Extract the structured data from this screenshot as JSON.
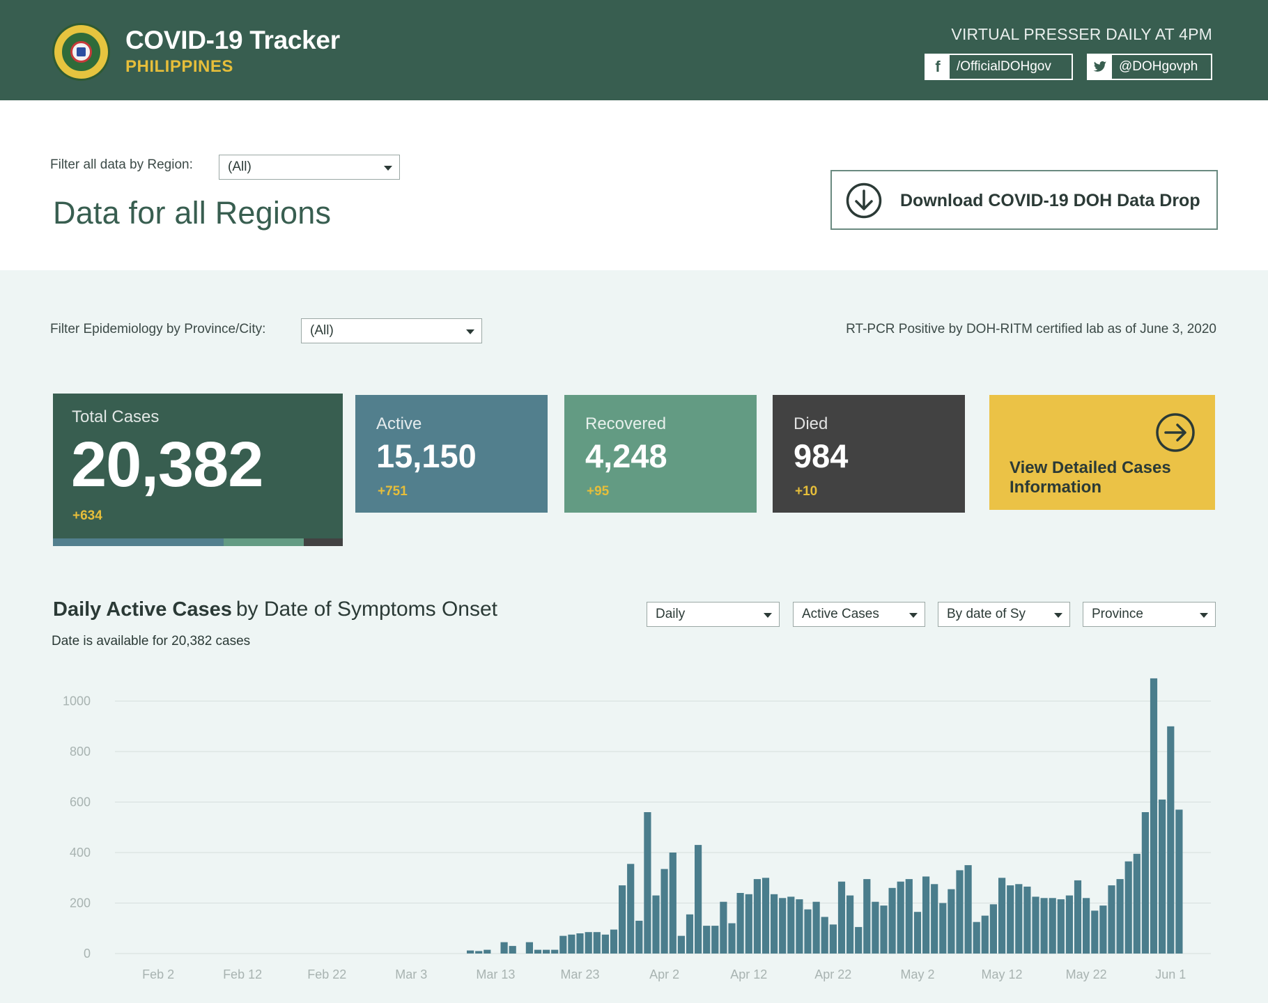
{
  "header": {
    "title": "COVID-19 Tracker",
    "subtitle": "PHILIPPINES",
    "presser": "VIRTUAL PRESSER DAILY AT 4PM",
    "facebook": "/OfficialDOHgov",
    "twitter": "@DOHgovph"
  },
  "region_filter": {
    "label": "Filter all data by Region:",
    "value": "(All)"
  },
  "region_title": "Data for all Regions",
  "download_label": "Download COVID-19 DOH Data Drop",
  "province_filter": {
    "label": "Filter Epidemiology by Province/City:",
    "value": "(All)"
  },
  "source_note": "RT-PCR Positive by DOH-RITM certified lab as of June 3, 2020",
  "cards": {
    "total": {
      "label": "Total Cases",
      "value": "20,382",
      "delta": "+634"
    },
    "active": {
      "label": "Active",
      "value": "15,150",
      "delta": "+751"
    },
    "recovered": {
      "label": "Recovered",
      "value": "4,248",
      "delta": "+95"
    },
    "died": {
      "label": "Died",
      "value": "984",
      "delta": "+10"
    },
    "detail": {
      "label": "View Detailed Cases Information"
    }
  },
  "colors": {
    "header": "#385e50",
    "active": "#527f8d",
    "recovered": "#639b83",
    "died": "#424242",
    "accent": "#ebc246",
    "bar": "#4a7d8c"
  },
  "chart_controls": [
    "Daily",
    "Active Cases",
    "By date of Sy",
    "Province"
  ],
  "chart_heading": {
    "bold": "Daily Active Cases",
    "rest": "by Date of Symptoms Onset"
  },
  "chart_note": "Date is available for 20,382 cases",
  "chart_data": {
    "type": "bar",
    "title": "Daily Active Cases by Date of Symptoms Onset",
    "xlabel": "",
    "ylabel": "",
    "ylim": [
      0,
      1100
    ],
    "yticks": [
      0,
      200,
      400,
      600,
      800,
      1000
    ],
    "x_start": "2020-01-28",
    "xticks": [
      "Feb 2",
      "Feb 12",
      "Feb 22",
      "Mar 3",
      "Mar 13",
      "Mar 23",
      "Apr 2",
      "Apr 12",
      "Apr 22",
      "May 2",
      "May 12",
      "May 22",
      "Jun 1"
    ],
    "grid": true,
    "series": [
      {
        "values": [
          0,
          0,
          0,
          0,
          0,
          0,
          0,
          0,
          0,
          0,
          0,
          0,
          0,
          0,
          0,
          0,
          0,
          0,
          0,
          0,
          0,
          0,
          0,
          0,
          0,
          0,
          0,
          0,
          0,
          0,
          0,
          0,
          0,
          0,
          0,
          0,
          0,
          0,
          0,
          0,
          0,
          0,
          12,
          10,
          15,
          0,
          45,
          30,
          0,
          45,
          15,
          15,
          15,
          70,
          75,
          80,
          85,
          85,
          75,
          95,
          270,
          355,
          130,
          560,
          230,
          335,
          400,
          70,
          155,
          430,
          110,
          110,
          205,
          120,
          240,
          235,
          295,
          300,
          235,
          220,
          225,
          215,
          175,
          205,
          145,
          115,
          285,
          230,
          105,
          295,
          205,
          190,
          260,
          285,
          295,
          165,
          305,
          275,
          200,
          255,
          330,
          350,
          125,
          150,
          195,
          300,
          270,
          275,
          265,
          225,
          220,
          220,
          215,
          230,
          290,
          220,
          170,
          190,
          270,
          295,
          365,
          395,
          560,
          1090,
          610,
          900,
          570
        ]
      }
    ]
  }
}
